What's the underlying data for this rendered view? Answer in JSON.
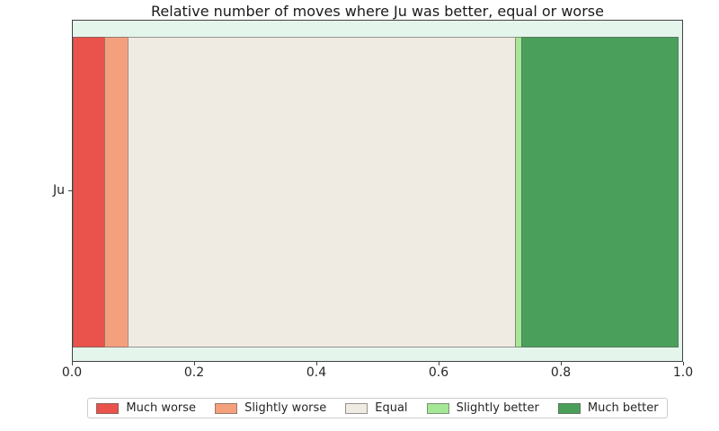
{
  "chart_data": {
    "type": "bar",
    "orientation": "horizontal",
    "stacked": true,
    "title": "Relative number of moves where Ju was better, equal or worse",
    "categories": [
      "Ju"
    ],
    "series": [
      {
        "name": "Much worse",
        "values": [
          0.0529
        ],
        "color": "#e9534b"
      },
      {
        "name": "Slightly worse",
        "values": [
          0.0397
        ],
        "color": "#f5a07d"
      },
      {
        "name": "Equal",
        "values": [
          0.6368
        ],
        "color": "#f0ebe2"
      },
      {
        "name": "Slightly better",
        "values": [
          0.0118
        ],
        "color": "#a5e795"
      },
      {
        "name": "Much better",
        "values": [
          0.2588
        ],
        "color": "#4aa05b"
      }
    ],
    "xlim": [
      0.0,
      1.0
    ],
    "x_tick_labels": [
      "0.0",
      "0.2",
      "0.4",
      "0.6",
      "0.8",
      "1.0"
    ],
    "grid": false,
    "legend_position": "lower center, outside plot",
    "plot_background": "#e4f5ec"
  },
  "colors": {
    "figure_background": "#ffffff",
    "spine": "#424242",
    "tick_text": "#262626",
    "segment_edge": "rgba(100,100,100,0.65)",
    "legend_border": "#cccccc"
  }
}
